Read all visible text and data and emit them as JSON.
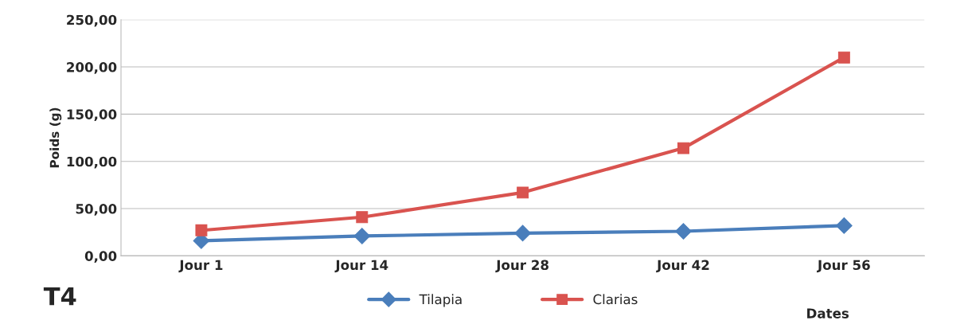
{
  "chart_data": {
    "type": "line",
    "ylabel": "Poids (g)",
    "xlabel": "Dates",
    "categories": [
      "Jour 1",
      "Jour 14",
      "Jour 28",
      "Jour 42",
      "Jour 56"
    ],
    "series": [
      {
        "name": "Tilapia",
        "color": "#4a7ebb",
        "marker": "diamond",
        "values": [
          16,
          21,
          24,
          26,
          32
        ]
      },
      {
        "name": "Clarias",
        "color": "#d9534f",
        "marker": "square",
        "values": [
          27,
          41,
          67,
          114,
          210
        ]
      }
    ],
    "ylim": [
      0,
      250
    ],
    "yticks": [
      {
        "value": 0,
        "label": "0,00"
      },
      {
        "value": 50,
        "label": "50,00"
      },
      {
        "value": 100,
        "label": "100,00"
      },
      {
        "value": 150,
        "label": "150,00"
      },
      {
        "value": 200,
        "label": "200,00"
      },
      {
        "value": 250,
        "label": "250,00"
      }
    ],
    "grid": "y",
    "legend": "bottom",
    "annotations": [
      "T4"
    ]
  }
}
